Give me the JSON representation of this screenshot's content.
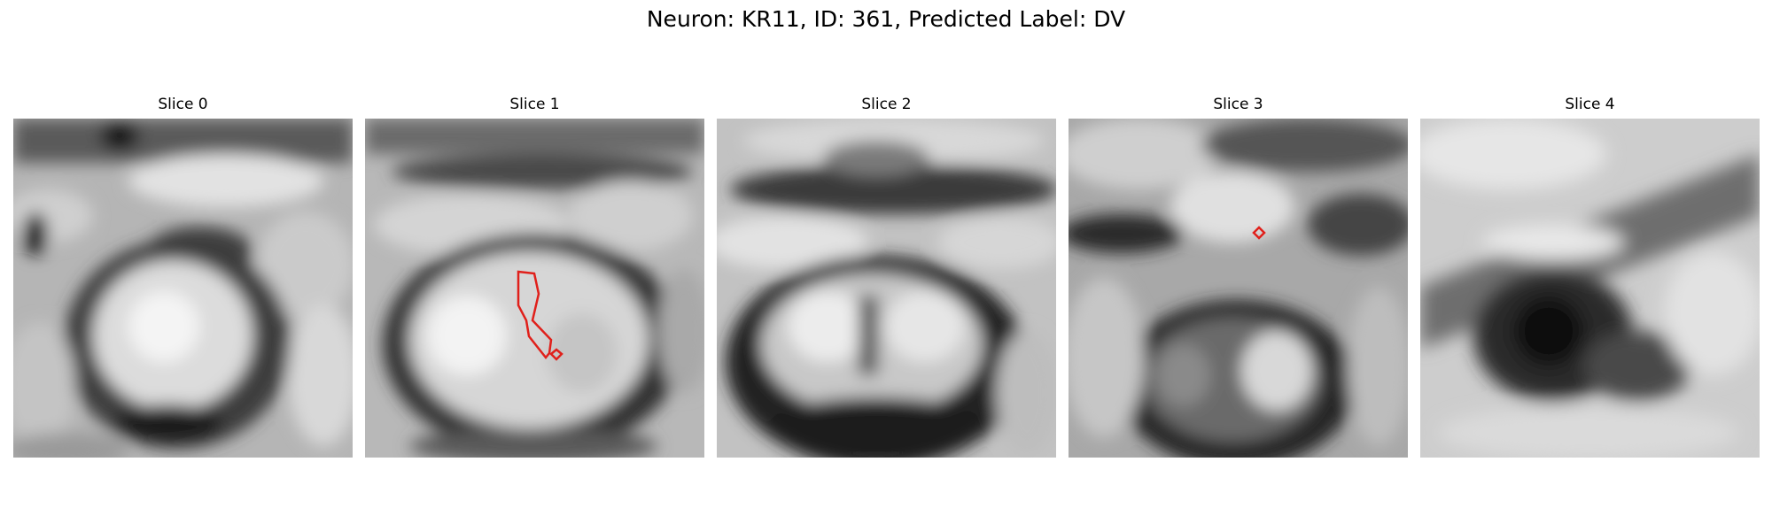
{
  "figure": {
    "title": "Neuron: KR11, ID: 361, Predicted Label: DV"
  },
  "panels": [
    {
      "title": "Slice 0"
    },
    {
      "title": "Slice 1"
    },
    {
      "title": "Slice 2"
    },
    {
      "title": "Slice 3"
    },
    {
      "title": "Slice 4"
    }
  ],
  "overlay_color": "#e0201b"
}
